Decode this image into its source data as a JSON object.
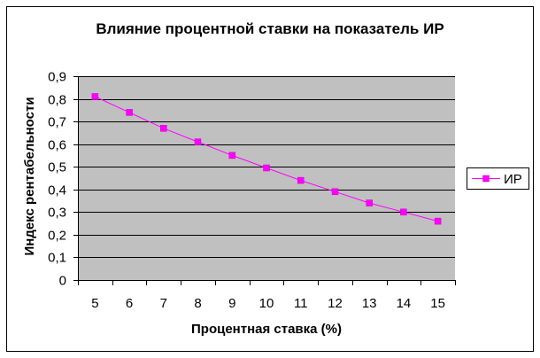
{
  "chart_data": {
    "type": "line",
    "title": "Влияние процентной ставки на показатель ИР",
    "xlabel": "Процентная ставка (%)",
    "ylabel": "Индекс рентабельности",
    "categories": [
      "5",
      "6",
      "7",
      "8",
      "9",
      "10",
      "11",
      "12",
      "13",
      "14",
      "15"
    ],
    "series": [
      {
        "name": "ИР",
        "values": [
          0.81,
          0.74,
          0.67,
          0.61,
          0.55,
          0.495,
          0.44,
          0.39,
          0.34,
          0.3,
          0.26
        ],
        "color": "#ff00ff"
      }
    ],
    "ylim": [
      0,
      0.9
    ],
    "yticks": [
      "0",
      "0,1",
      "0,2",
      "0,3",
      "0,4",
      "0,5",
      "0,6",
      "0,7",
      "0,8",
      "0,9"
    ],
    "grid": true,
    "legend_position": "right",
    "colors": {
      "plot_background": "#c0c0c0",
      "gridline": "#000000",
      "series_line": "#ff00ff"
    }
  }
}
